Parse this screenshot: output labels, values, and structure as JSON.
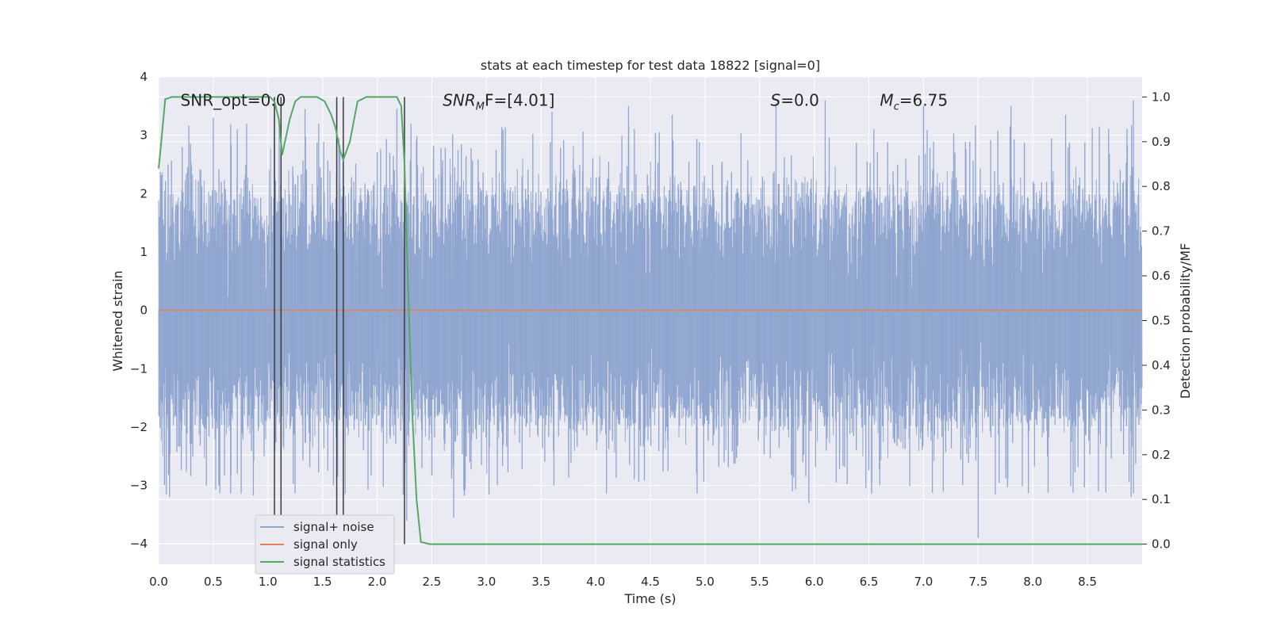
{
  "chart_data": {
    "type": "line",
    "title": "stats at each timestep for test data 18822 [signal=0]",
    "xlabel": "Time (s)",
    "ylabel": "Whitened strain",
    "y2label": "Detection probability/MF",
    "xlim": [
      0,
      9.0
    ],
    "ylim": [
      -4.35,
      4.0
    ],
    "y2lim": [
      -0.045,
      1.045
    ],
    "x_ticks": [
      0.0,
      0.5,
      1.0,
      1.5,
      2.0,
      2.5,
      3.0,
      3.5,
      4.0,
      4.5,
      5.0,
      5.5,
      6.0,
      6.5,
      7.0,
      7.5,
      8.0,
      8.5
    ],
    "y_ticks": [
      4,
      3,
      2,
      1,
      0,
      -1,
      -2,
      -3,
      -4
    ],
    "y2_ticks": [
      1.0,
      0.9,
      0.8,
      0.7,
      0.6,
      0.5,
      0.4,
      0.3,
      0.2,
      0.1,
      0.0
    ],
    "grid": true,
    "legend_position": "lower-left",
    "annotations": [
      {
        "text": "SNR_opt=0.0",
        "x": 0.2,
        "y": 3.6
      },
      {
        "text_main": "SNR",
        "text_sub": "M",
        "text_rest": "F=[4.01]",
        "x": 2.6,
        "y": 3.6
      },
      {
        "text_main": "S",
        "text_rest": "=0.0",
        "x": 5.6,
        "y": 3.6
      },
      {
        "text_main": "M",
        "text_sub": "c",
        "text_rest": "=6.75",
        "x": 6.6,
        "y": 3.6
      }
    ],
    "series": [
      {
        "name": "signal+ noise",
        "color": "#8fa5cf",
        "axis": "left",
        "noise_envelope": {
          "x_range": [
            0,
            9.0
          ],
          "typical_amplitude": 1.7,
          "peaks": [
            [
              0.07,
              -3.15
            ],
            [
              0.1,
              -3.2
            ],
            [
              0.5,
              3.3
            ],
            [
              0.55,
              -3.0
            ],
            [
              0.72,
              -2.8
            ],
            [
              0.72,
              3.1
            ],
            [
              1.06,
              3.55
            ],
            [
              1.34,
              3.45
            ],
            [
              1.6,
              -3.0
            ],
            [
              1.65,
              2.95
            ],
            [
              2.18,
              3.45
            ],
            [
              2.27,
              -3.6
            ],
            [
              2.7,
              -3.55
            ],
            [
              3.1,
              -3.0
            ],
            [
              3.6,
              3.4
            ],
            [
              4.3,
              3.5
            ],
            [
              4.7,
              3.35
            ],
            [
              5.65,
              3.55
            ],
            [
              5.8,
              -3.1
            ],
            [
              5.95,
              -3.3
            ],
            [
              6.1,
              3.6
            ],
            [
              6.6,
              -3.0
            ],
            [
              7.0,
              3.5
            ],
            [
              7.5,
              -3.9
            ],
            [
              7.8,
              3.5
            ],
            [
              8.3,
              3.35
            ],
            [
              8.6,
              -3.1
            ],
            [
              8.92,
              3.6
            ],
            [
              8.9,
              -3.2
            ]
          ]
        }
      },
      {
        "name": "signal only",
        "color": "#dd8452",
        "axis": "left",
        "x": [
          0,
          9.0
        ],
        "y": [
          0,
          0
        ]
      },
      {
        "name": "signal statistics",
        "color": "#55a868",
        "axis": "right",
        "x": [
          0.0,
          0.02,
          0.06,
          0.12,
          0.2,
          0.4,
          0.6,
          0.8,
          0.95,
          1.02,
          1.06,
          1.1,
          1.13,
          1.2,
          1.25,
          1.3,
          1.45,
          1.52,
          1.58,
          1.62,
          1.66,
          1.69,
          1.75,
          1.82,
          1.9,
          2.0,
          2.1,
          2.18,
          2.22,
          2.25,
          2.28,
          2.32,
          2.36,
          2.4,
          2.48,
          9.0
        ],
        "y": [
          0.84,
          0.89,
          0.995,
          1.0,
          1.0,
          1.0,
          1.0,
          1.0,
          1.0,
          1.0,
          0.99,
          0.95,
          0.87,
          0.95,
          0.99,
          1.0,
          1.0,
          0.99,
          0.96,
          0.93,
          0.88,
          0.86,
          0.9,
          0.99,
          1.0,
          1.0,
          1.0,
          1.0,
          0.98,
          0.85,
          0.6,
          0.3,
          0.1,
          0.005,
          0.0,
          0.0
        ]
      }
    ],
    "vlines": [
      1.06,
      1.12,
      1.63,
      1.69,
      2.25
    ]
  }
}
